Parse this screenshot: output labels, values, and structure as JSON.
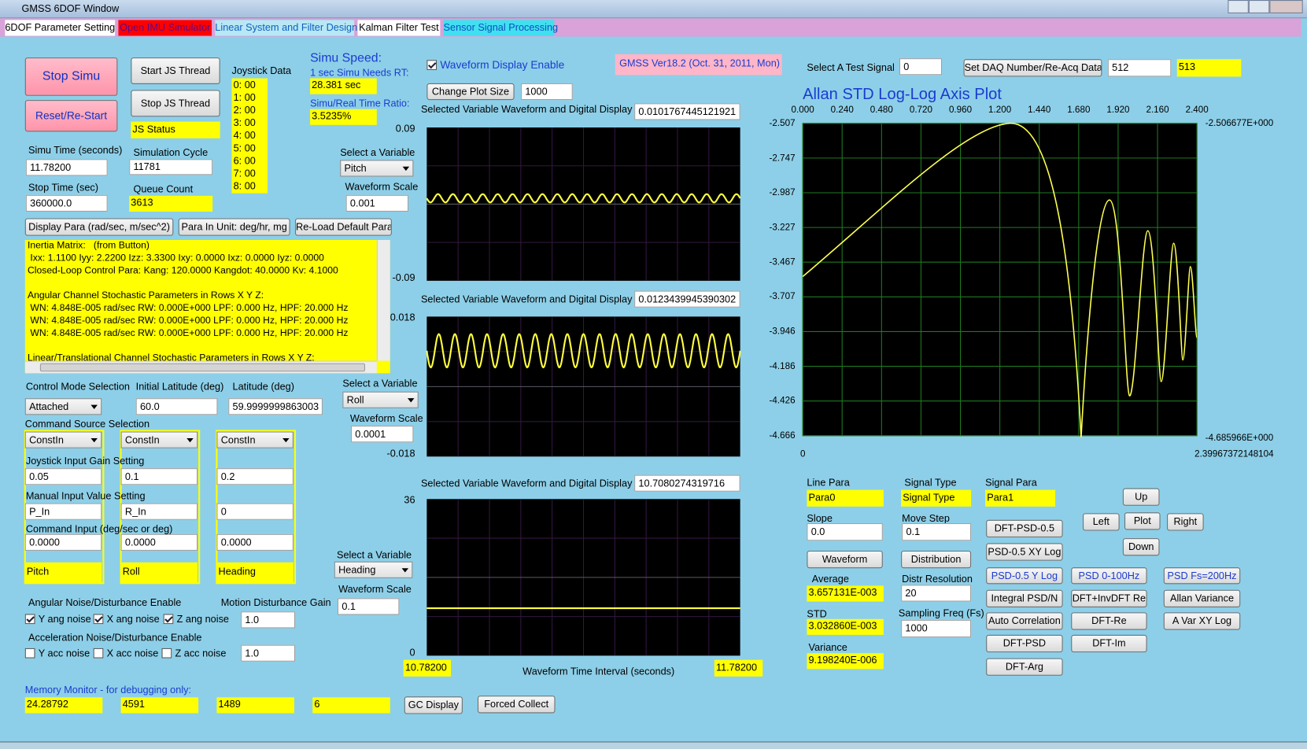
{
  "window": {
    "title": "GMSS 6DOF Window"
  },
  "tabs": [
    "6DOF Parameter Setting",
    "Open IMU Simulator",
    "Linear System and Filter Design",
    "Kalman Filter Test",
    "Sensor Signal Processing"
  ],
  "simulation": {
    "stop_button": "Stop Simu",
    "reset_button": "Reset/Re-Start",
    "start_js_button": "Start JS Thread",
    "stop_js_button": "Stop JS Thread",
    "js_status": "JS Status",
    "joystick_label": "Joystick Data",
    "joystick_data": [
      "0: 00",
      "1: 00",
      "2: 00",
      "3: 00",
      "4: 00",
      "5: 00",
      "6: 00",
      "7: 00",
      "8: 00"
    ],
    "speed_title": "Simu Speed:",
    "rt_label": "1 sec Simu Needs RT:",
    "rt_value": "28.381 sec",
    "ratio_label": "Simu/Real Time Ratio:",
    "ratio_value": "3.5235%",
    "time_label": "Simu Time (seconds)",
    "time_value": "11.78200",
    "cycle_label": "Simulation Cycle",
    "cycle_value": "11781",
    "stop_time_label": "Stop Time (sec)",
    "stop_time_value": "360000.0",
    "queue_label": "Queue Count",
    "queue_value": "3613"
  },
  "parameters": {
    "buttons": [
      "Display Para (rad/sec, m/sec^2)",
      "Para In Unit: deg/hr, mg",
      "Re-Load Default Para"
    ],
    "text": [
      "Inertia Matrix:   (from Button)",
      " Ixx: 1.1100 Iyy: 2.2200 Izz: 3.3300 Ixy: 0.0000 Ixz: 0.0000 Iyz: 0.0000",
      "Closed-Loop Control Para: Kang: 120.0000 Kangdot: 40.0000 Kv: 4.1000",
      "Angular Channel Stochastic Parameters in Rows X Y Z:",
      " WN: 4.848E-005 rad/sec RW: 0.000E+000 LPF: 0.000 Hz, HPF: 20.000 Hz",
      " WN: 4.848E-005 rad/sec RW: 0.000E+000 LPF: 0.000 Hz, HPF: 20.000 Hz",
      " WN: 4.848E-005 rad/sec RW: 0.000E+000 LPF: 0.000 Hz, HPF: 20.000 Hz",
      "Linear/Translational Channel Stochastic Parameters in Rows X Y Z:"
    ]
  },
  "control": {
    "mode_label": "Control Mode Selection",
    "mode_value": "Attached",
    "init_lat_label": "Initial Latitude (deg)",
    "init_lat_value": "60.0",
    "lat_label": "Latitude (deg)",
    "lat_value": "59.9999999863003",
    "source_label": "Command Source Selection",
    "gain_label": "Joystick Input Gain Setting",
    "manual_label": "Manual Input Value Setting",
    "command_label": "Command Input (deg/sec or deg)",
    "channels": [
      {
        "source": "ConstIn",
        "gain": "0.05",
        "manual": "P_In",
        "command": "0.0000",
        "variable": "Pitch"
      },
      {
        "source": "ConstIn",
        "gain": "0.1",
        "manual": "R_In",
        "command": "0.0000",
        "variable": "Roll"
      },
      {
        "source": "ConstIn",
        "gain": "0.2",
        "manual": "0",
        "command": "0.0000",
        "variable": "Heading"
      }
    ]
  },
  "noise": {
    "angular_label": "Angular Noise/Disturbance Enable",
    "gain_label": "Motion Disturbance Gain",
    "angular": [
      {
        "label": "Y ang noise",
        "checked": true
      },
      {
        "label": "X ang noise",
        "checked": true
      },
      {
        "label": "Z ang noise",
        "checked": true
      }
    ],
    "angular_gain": "1.0",
    "accel_label": "Acceleration Noise/Disturbance Enable",
    "accel": [
      {
        "label": "Y acc noise",
        "checked": false
      },
      {
        "label": "X acc noise",
        "checked": false
      },
      {
        "label": "Z acc noise",
        "checked": false
      }
    ],
    "accel_gain": "1.0"
  },
  "memory": {
    "label": "Memory Monitor - for debugging only:",
    "values": [
      "24.28792",
      "4591",
      "1489",
      "6"
    ],
    "gc_button": "GC Display",
    "collect_button": "Forced Collect"
  },
  "waveforms": {
    "enable_label": "Waveform Display Enable",
    "enabled": true,
    "version": "GMSS Ver18.2 (Oct. 31, 2011, Mon)",
    "size_button": "Change Plot Size",
    "size_value": "1000",
    "plots": [
      {
        "label": "Selected Variable Waveform and Digital Display",
        "value": "0.0101767445121921",
        "ymax": "0.09",
        "ymin": "-0.09",
        "select_label": "Select a Variable",
        "variable": "Pitch",
        "scale_label": "Waveform Scale",
        "scale": "0.001"
      },
      {
        "label": "Selected Variable Waveform and Digital Display",
        "value": "0.0123439945390302",
        "ymax": "0.018",
        "ymin": "-0.018",
        "select_label": "Select a Variable",
        "variable": "Roll",
        "scale_label": "Waveform Scale",
        "scale": "0.0001"
      },
      {
        "label": "Selected Variable Waveform and Digital Display",
        "value": "10.7080274319716",
        "ymax": "36",
        "ymin": "0",
        "select_label": "Select a Variable",
        "variable": "Heading",
        "scale_label": "Waveform Scale",
        "scale": "0.1"
      }
    ],
    "t_start": "10.78200",
    "t_label": "Waveform Time Interval (seconds)",
    "t_end": "11.78200"
  },
  "analysis": {
    "test_label": "Select A Test Signal",
    "test_value": "0",
    "daq_button": "Set DAQ Number/Re-Acq Data",
    "daq_value": "512",
    "daq_count": "513",
    "plot": {
      "title": "Allan STD Log-Log Axis Plot",
      "xticks": [
        "0.000",
        "0.240",
        "0.480",
        "0.720",
        "0.960",
        "1.200",
        "1.440",
        "1.680",
        "1.920",
        "2.160",
        "2.400"
      ],
      "yticks": [
        "-2.507",
        "-2.747",
        "-2.987",
        "-3.227",
        "-3.467",
        "-3.707",
        "-3.946",
        "-4.186",
        "-4.426",
        "-4.666"
      ],
      "ymax_label": "-2.506677E+000",
      "ymin_label": "-4.685966E+000",
      "xmin_label": "0",
      "xmax_label": "2.39967372148104"
    },
    "line_para_label": "Line Para",
    "line_para": "Para0",
    "signal_type_label": "Signal Type",
    "signal_type": "Signal Type",
    "signal_para_label": "Signal Para",
    "signal_para": "Para1",
    "slope_label": "Slope",
    "slope": "0.0",
    "move_label": "Move Step",
    "move": "0.1",
    "average_label": "Average",
    "average": "3.657131E-003",
    "resolution_label": "Distr Resolution",
    "resolution": "20",
    "std_label": "STD",
    "std": "3.032860E-003",
    "fs_label": "Sampling Freq (Fs)",
    "fs": "1000",
    "variance_label": "Variance",
    "variance": "9.198240E-006",
    "buttons": [
      "Waveform",
      "Distribution",
      "DFT-PSD-0.5",
      "PSD-0.5 XY Log",
      "PSD-0.5 Y Log",
      "Integral PSD/N",
      "Auto Correlation",
      "DFT-PSD",
      "DFT-Arg",
      "PSD 0-100Hz",
      "DFT+InvDFT Re",
      "DFT-Re",
      "DFT-Im",
      "Up",
      "Left",
      "Plot",
      "Right",
      "Down",
      "PSD Fs=200Hz",
      "Allan Variance",
      "A Var XY Log"
    ]
  }
}
